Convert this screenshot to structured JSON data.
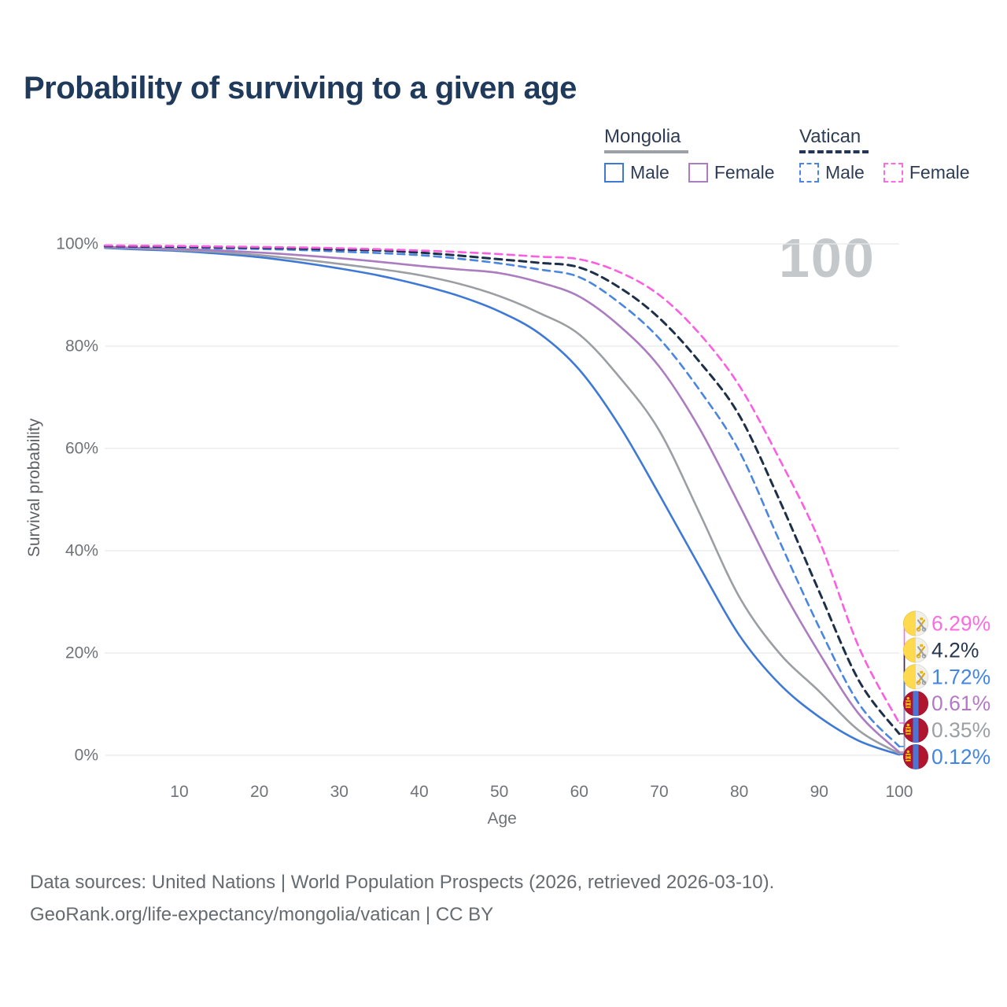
{
  "title": "Probability of surviving to a given age",
  "watermark": "100",
  "legend": {
    "groups": [
      {
        "label": "Mongolia",
        "underline_style": "solid",
        "underline_color": "#9ba0a6",
        "underline_width": 107,
        "items": [
          {
            "label": "Male",
            "color": "#3e79d6",
            "dashed": false
          },
          {
            "label": "Female",
            "color": "#ab7cc0",
            "dashed": false
          }
        ]
      },
      {
        "label": "Vatican",
        "underline_style": "dashed",
        "underline_color": "#23355a",
        "underline_width": 88,
        "items": [
          {
            "label": "Male",
            "color": "#4a85e0",
            "dashed": true
          },
          {
            "label": "Female",
            "color": "#fb6ce4",
            "dashed": true
          }
        ]
      }
    ]
  },
  "chart_data": {
    "type": "line",
    "title": "Probability of surviving to a given age",
    "xlabel": "Age",
    "ylabel": "Survival probability",
    "xlim": [
      0,
      100
    ],
    "ylim": [
      0,
      100
    ],
    "grid": "horizontal-only",
    "grid_color": "#e8e9eb",
    "tick_color": "#6f7378",
    "x_ticks": [
      {
        "label": "10",
        "value": 10
      },
      {
        "label": "20",
        "value": 20
      },
      {
        "label": "30",
        "value": 30
      },
      {
        "label": "40",
        "value": 40
      },
      {
        "label": "50",
        "value": 50
      },
      {
        "label": "60",
        "value": 60
      },
      {
        "label": "70",
        "value": 70
      },
      {
        "label": "80",
        "value": 80
      },
      {
        "label": "90",
        "value": 90
      },
      {
        "label": "100",
        "value": 100
      }
    ],
    "y_ticks": [
      {
        "label": "0%",
        "value": 0
      },
      {
        "label": "20%",
        "value": 20
      },
      {
        "label": "40%",
        "value": 40
      },
      {
        "label": "60%",
        "value": 60
      },
      {
        "label": "80%",
        "value": 80
      },
      {
        "label": "100%",
        "value": 100
      }
    ],
    "x": [
      0.7,
      5,
      10,
      15,
      20,
      25,
      30,
      35,
      40,
      45,
      50,
      55,
      60,
      65,
      70,
      75,
      80,
      85,
      90,
      95,
      100
    ],
    "series": [
      {
        "name": "Mongolia Male",
        "country": "Mongolia",
        "sex": "Male",
        "color": "#3e79d6",
        "dashed": false,
        "flag": "mongolia",
        "end_label": "0.12%",
        "end_label_color": "#4285e4",
        "values": [
          99.2,
          98.9,
          98.6,
          98.1,
          97.4,
          96.4,
          95.2,
          93.8,
          92.0,
          89.8,
          86.8,
          82.5,
          75.4,
          64.5,
          51.0,
          37.0,
          23.5,
          14.0,
          7.5,
          2.8,
          0.12
        ]
      },
      {
        "name": "Mongolia Both sexes",
        "country": "Mongolia",
        "sex": "Both",
        "color": "#9b9ea3",
        "dashed": false,
        "flag": "mongolia",
        "end_label": "0.35%",
        "end_label_color": "#9aa0a4",
        "values": [
          99.3,
          99.1,
          98.8,
          98.4,
          97.8,
          97.0,
          96.1,
          95.1,
          93.9,
          92.2,
          89.8,
          86.5,
          82.3,
          74.0,
          63.5,
          47.5,
          31.0,
          20.0,
          12.5,
          4.8,
          0.35
        ]
      },
      {
        "name": "Mongolia Female",
        "country": "Mongolia",
        "sex": "Female",
        "color": "#ab7cc0",
        "dashed": false,
        "flag": "mongolia",
        "end_label": "0.61%",
        "end_label_color": "#b578c8",
        "values": [
          99.4,
          99.2,
          99.0,
          98.7,
          98.3,
          97.8,
          97.2,
          96.5,
          95.7,
          95.0,
          94.3,
          92.5,
          89.7,
          84.0,
          76.0,
          64.0,
          49.0,
          33.5,
          20.0,
          8.0,
          0.61
        ]
      },
      {
        "name": "Vatican Male",
        "country": "Vatican",
        "sex": "Male",
        "color": "#4a85e0",
        "dashed": true,
        "flag": "vatican",
        "end_label": "1.72%",
        "end_label_color": "#4285e4",
        "values": [
          99.5,
          99.4,
          99.3,
          99.1,
          99.0,
          98.8,
          98.5,
          98.2,
          97.8,
          97.1,
          96.2,
          95.0,
          93.5,
          88.5,
          81.5,
          71.5,
          59.5,
          42.0,
          25.0,
          10.0,
          1.72
        ]
      },
      {
        "name": "Vatican Both sexes",
        "country": "Vatican",
        "sex": "Both",
        "color": "#1d3049",
        "dashed": true,
        "flag": "vatican",
        "end_label": "4.2%",
        "end_label_color": "#273750",
        "values": [
          99.6,
          99.5,
          99.45,
          99.35,
          99.25,
          99.1,
          98.9,
          98.7,
          98.3,
          97.7,
          97.0,
          96.3,
          95.4,
          91.5,
          85.5,
          77.0,
          66.5,
          50.0,
          32.0,
          14.5,
          4.2
        ]
      },
      {
        "name": "Vatican Female",
        "country": "Vatican",
        "sex": "Female",
        "color": "#fb5ee0",
        "dashed": true,
        "flag": "vatican",
        "end_label": "6.29%",
        "end_label_color": "#fb6ce0",
        "values": [
          99.7,
          99.65,
          99.6,
          99.5,
          99.4,
          99.3,
          99.15,
          98.95,
          98.7,
          98.4,
          98.0,
          97.5,
          97.0,
          94.5,
          90.0,
          82.5,
          72.3,
          58.0,
          42.0,
          21.0,
          6.29
        ]
      }
    ]
  },
  "footer": {
    "line1": "Data sources: United Nations | World Population Prospects (2026, retrieved 2026-03-10).",
    "line2": "GeoRank.org/life-expectancy/mongolia/vatican | CC BY"
  }
}
